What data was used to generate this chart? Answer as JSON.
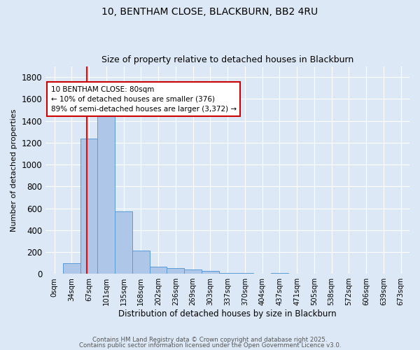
{
  "title1": "10, BENTHAM CLOSE, BLACKBURN, BB2 4RU",
  "title2": "Size of property relative to detached houses in Blackburn",
  "xlabel": "Distribution of detached houses by size in Blackburn",
  "ylabel": "Number of detached properties",
  "bar_labels": [
    "0sqm",
    "34sqm",
    "67sqm",
    "101sqm",
    "135sqm",
    "168sqm",
    "202sqm",
    "236sqm",
    "269sqm",
    "303sqm",
    "337sqm",
    "370sqm",
    "404sqm",
    "437sqm",
    "471sqm",
    "505sqm",
    "538sqm",
    "572sqm",
    "606sqm",
    "639sqm",
    "673sqm"
  ],
  "bar_values": [
    0,
    95,
    1235,
    1490,
    570,
    210,
    65,
    50,
    38,
    27,
    10,
    5,
    2,
    8,
    0,
    0,
    0,
    0,
    0,
    0,
    0
  ],
  "bar_color": "#aec6e8",
  "bar_edge_color": "#5b9bd5",
  "property_line_color": "red",
  "annotation_text": "10 BENTHAM CLOSE: 80sqm\n← 10% of detached houses are smaller (376)\n89% of semi-detached houses are larger (3,372) →",
  "annotation_box_color": "white",
  "annotation_box_edgecolor": "#cc0000",
  "ylim": [
    0,
    1900
  ],
  "yticks": [
    0,
    200,
    400,
    600,
    800,
    1000,
    1200,
    1400,
    1600,
    1800
  ],
  "background_color": "#dce8f5",
  "axes_background_color": "#dce8f5",
  "grid_color": "#ffffff",
  "footer1": "Contains HM Land Registry data © Crown copyright and database right 2025.",
  "footer2": "Contains public sector information licensed under the Open Government Licence v3.0."
}
